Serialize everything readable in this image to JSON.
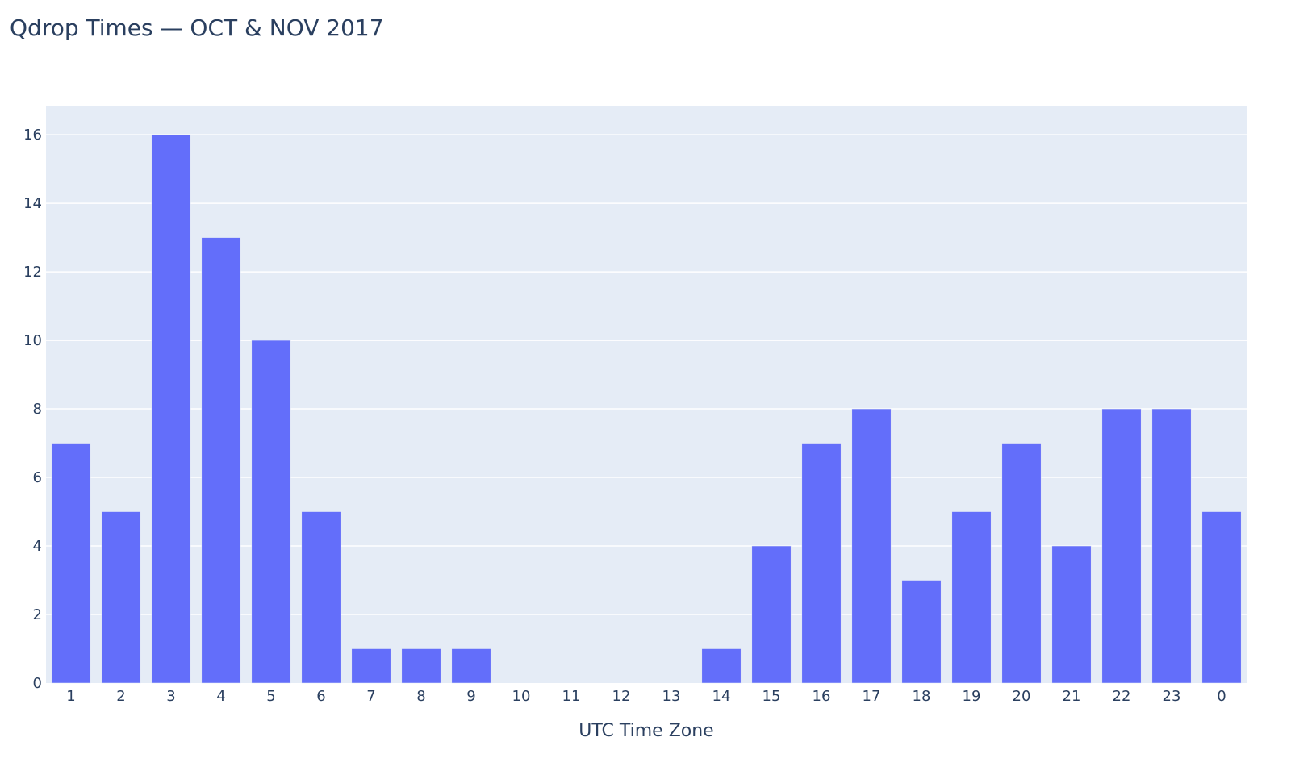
{
  "chart_data": {
    "type": "bar",
    "title": "Qdrop Times — OCT & NOV 2017",
    "xlabel": "UTC Time Zone",
    "ylabel": "",
    "categories": [
      "1",
      "2",
      "3",
      "4",
      "5",
      "6",
      "7",
      "8",
      "9",
      "10",
      "11",
      "12",
      "13",
      "14",
      "15",
      "16",
      "17",
      "18",
      "19",
      "20",
      "21",
      "22",
      "23",
      "0"
    ],
    "values": [
      7,
      5,
      16,
      13,
      10,
      5,
      1,
      1,
      1,
      0,
      0,
      0,
      0,
      1,
      4,
      7,
      8,
      3,
      5,
      7,
      4,
      8,
      8,
      5
    ],
    "ylim": [
      0,
      16.85
    ],
    "yticks": [
      0,
      2,
      4,
      6,
      8,
      10,
      12,
      14,
      16
    ],
    "grid": true,
    "legend": "none",
    "colors": {
      "bar": "#636efa",
      "plot_bg": "#e5ecf6",
      "grid": "#ffffff",
      "text": "#2a3f5f"
    }
  }
}
